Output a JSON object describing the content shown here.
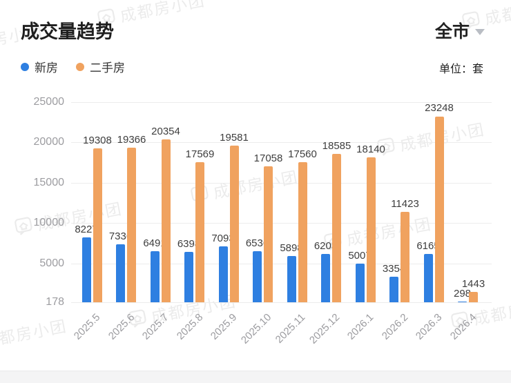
{
  "header": {
    "title": "成交量趋势",
    "region": "全市",
    "unit_label": "单位：套"
  },
  "legend": [
    {
      "label": "新房",
      "color": "#2e7fe1"
    },
    {
      "label": "二手房",
      "color": "#f0a25f"
    }
  ],
  "watermark": {
    "text": "成都房小团"
  },
  "chart_data": {
    "type": "bar",
    "title": "成交量趋势",
    "xlabel": "",
    "ylabel": "单位：套",
    "categories": [
      "2025.5",
      "2025.6",
      "2025.7",
      "2025.8",
      "2025.9",
      "2025.10",
      "2025.11",
      "2025.12",
      "2026.1",
      "2026.2",
      "2026.3",
      "2026.4"
    ],
    "series": [
      {
        "name": "新房",
        "color": "#2e7fe1",
        "values": [
          8227,
          7336,
          6491,
          6398,
          7093,
          6536,
          5898,
          6203,
          5007,
          3354,
          6165,
          298
        ]
      },
      {
        "name": "二手房",
        "color": "#f0a25f",
        "values": [
          19308,
          19366,
          20354,
          17569,
          19581,
          17058,
          17560,
          18585,
          18140,
          11423,
          23248,
          1443
        ]
      }
    ],
    "ylim": [
      178,
      25000
    ],
    "yticks": [
      178,
      5000,
      10000,
      15000,
      20000,
      25000
    ],
    "grid": true,
    "legend_position": "top-left"
  }
}
